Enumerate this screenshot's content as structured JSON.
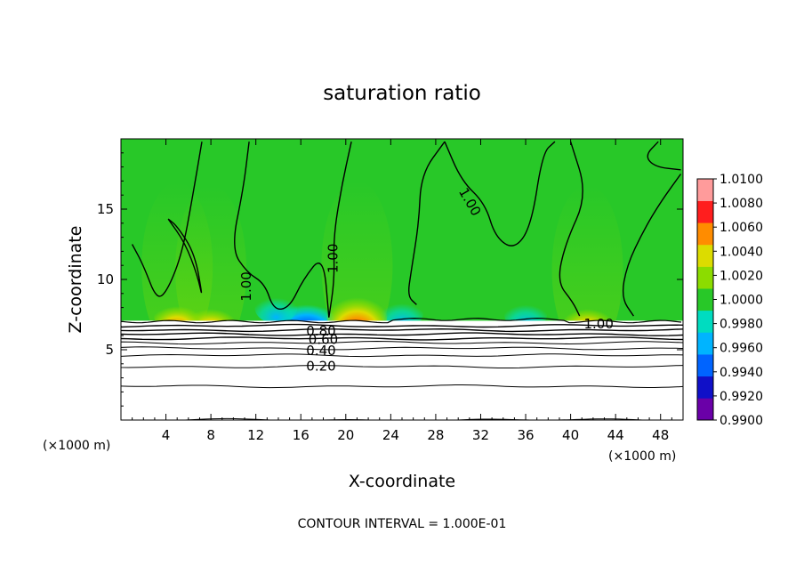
{
  "chart_data": {
    "type": "heatmap",
    "title": "saturation ratio",
    "xlabel": "X-coordinate",
    "ylabel": "Z-coordinate",
    "x_unit": "(×1000 m)",
    "xlim": [
      0,
      50
    ],
    "ylim": [
      0,
      20
    ],
    "x_ticks": [
      4,
      8,
      12,
      16,
      20,
      24,
      28,
      32,
      36,
      40,
      44,
      48
    ],
    "x_tick_labels": [
      "4",
      "8",
      "12",
      "16",
      "20",
      "24",
      "28",
      "32",
      "36",
      "40",
      "44",
      "48"
    ],
    "y_ticks": [
      5,
      10,
      15
    ],
    "y_tick_labels": [
      "5",
      "10",
      "15"
    ],
    "colorbar": {
      "levels": [
        0.99,
        0.992,
        0.994,
        0.996,
        0.998,
        1.0,
        1.002,
        1.004,
        1.006,
        1.008,
        1.01
      ],
      "labels": [
        "0.9900",
        "0.9920",
        "0.9940",
        "0.9960",
        "0.9980",
        "1.0000",
        "1.0020",
        "1.0040",
        "1.0060",
        "1.0080",
        "1.0100"
      ],
      "colors": [
        "#6a00a8",
        "#1010c8",
        "#0064ff",
        "#00b4ff",
        "#00dcc0",
        "#28c828",
        "#8cdc00",
        "#dcdc00",
        "#ff8c00",
        "#ff1e1e",
        "#ff9b9b"
      ]
    },
    "contour_labels": [
      {
        "text": "1.00",
        "x": 11.2,
        "z": 9.5
      },
      {
        "text": "1.00",
        "x": 18.9,
        "z": 11.5
      },
      {
        "text": "1.00",
        "x": 31.0,
        "z": 15.5
      },
      {
        "text": "1.00",
        "x": 42.5,
        "z": 6.8
      },
      {
        "text": "0.80",
        "x": 17.8,
        "z": 6.3
      },
      {
        "text": "0.60",
        "x": 18.0,
        "z": 5.7
      },
      {
        "text": "0.40",
        "x": 17.8,
        "z": 4.9
      },
      {
        "text": "0.20",
        "x": 17.8,
        "z": 3.8
      }
    ],
    "subsaturated_contour_levels_z": [
      0.0,
      2.4,
      3.8,
      4.6,
      5.1,
      5.5,
      5.8,
      6.1,
      6.4,
      6.7
    ],
    "cloud_base_z": 7.0,
    "moist_maxima": [
      {
        "x": 21.0,
        "z": 7.5,
        "value": 1.0085
      },
      {
        "x": 8.0,
        "z": 7.2,
        "value": 1.004
      },
      {
        "x": 41.5,
        "z": 7.2,
        "value": 1.004
      },
      {
        "x": 5.0,
        "z": 7.4,
        "value": 1.003
      }
    ],
    "dry_minima": [
      {
        "x": 16.5,
        "z": 7.3,
        "value": 0.994
      },
      {
        "x": 25.0,
        "z": 7.6,
        "value": 0.996
      },
      {
        "x": 13.8,
        "z": 8.0,
        "value": 0.997
      },
      {
        "x": 36.0,
        "z": 7.5,
        "value": 0.997
      }
    ]
  },
  "footer": {
    "contour_interval": "CONTOUR INTERVAL = 1.000E-01"
  }
}
